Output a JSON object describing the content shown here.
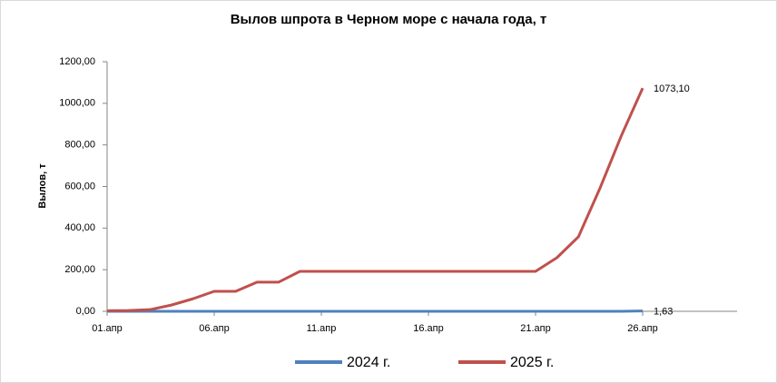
{
  "chart_data": {
    "type": "line",
    "title": "Вылов шпрота в Черном море с начала года, т",
    "y_label": "Вылов, т",
    "categories": [
      "01.апр",
      null,
      null,
      null,
      null,
      "06.апр",
      null,
      null,
      null,
      null,
      "11.апр",
      null,
      null,
      null,
      null,
      "16.апр",
      null,
      null,
      null,
      null,
      "21.апр",
      null,
      null,
      null,
      null,
      "26.апр",
      null,
      null,
      null,
      null
    ],
    "series": [
      {
        "name": "2024 г.",
        "color": "#4f81bd",
        "values": [
          0,
          0,
          0,
          0,
          0,
          0,
          0,
          0,
          0,
          0,
          0,
          0,
          0,
          0,
          0,
          0,
          0,
          0,
          0,
          0,
          0,
          0,
          0,
          0,
          0,
          1.63,
          null,
          null,
          null,
          null
        ],
        "value_labels": [
          null,
          null,
          null,
          null,
          null,
          null,
          null,
          null,
          null,
          null,
          null,
          null,
          null,
          null,
          null,
          null,
          null,
          null,
          null,
          null,
          null,
          null,
          null,
          null,
          null,
          "1,63",
          null,
          null,
          null,
          null
        ]
      },
      {
        "name": "2025 г.",
        "color": "#c0504d",
        "values": [
          3,
          4,
          8,
          30,
          60,
          96,
          96,
          140,
          140,
          192,
          192,
          192,
          192,
          192,
          192,
          192,
          192,
          192,
          192,
          192,
          192,
          258,
          358,
          590,
          843,
          1073.1,
          null,
          null,
          null,
          null
        ],
        "value_labels": [
          null,
          null,
          null,
          null,
          null,
          null,
          null,
          null,
          null,
          null,
          null,
          null,
          null,
          null,
          null,
          null,
          null,
          null,
          null,
          null,
          null,
          null,
          null,
          null,
          null,
          "1073,10",
          null,
          null,
          null,
          null
        ]
      }
    ],
    "ylim": [
      0,
      1200
    ],
    "yticks": [
      {
        "value": 0,
        "label": "0,00"
      },
      {
        "value": 200,
        "label": "200,00"
      },
      {
        "value": 400,
        "label": "400,00"
      },
      {
        "value": 600,
        "label": "600,00"
      },
      {
        "value": 800,
        "label": "800,00"
      },
      {
        "value": 1000,
        "label": "1000,00"
      },
      {
        "value": 1200,
        "label": "1200,00"
      }
    ],
    "grid": false
  }
}
